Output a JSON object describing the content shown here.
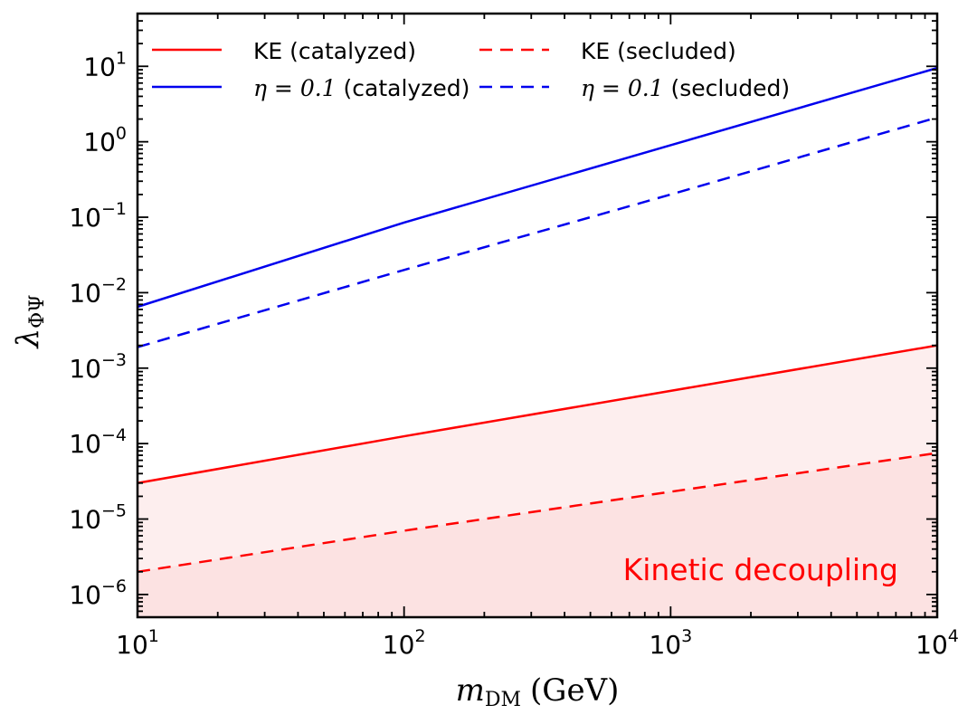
{
  "chart_data": {
    "type": "line",
    "xlabel": "m_DM (GeV)",
    "xlabel_main": "m",
    "xlabel_sub": "DM",
    "xlabel_unit": "(GeV)",
    "ylabel": "λ_ΦΨ",
    "ylabel_main": "λ",
    "ylabel_sub": "ΦΨ",
    "x_scale": "log",
    "y_scale": "log",
    "xlim": [
      10,
      10000
    ],
    "ylim": [
      5e-07,
      50
    ],
    "x_ticks": [
      {
        "value": 10,
        "base": "10",
        "exp": "1"
      },
      {
        "value": 100,
        "base": "10",
        "exp": "2"
      },
      {
        "value": 1000,
        "base": "10",
        "exp": "3"
      },
      {
        "value": 10000,
        "base": "10",
        "exp": "4"
      }
    ],
    "y_ticks": [
      {
        "value": 10,
        "base": "10",
        "exp": "1"
      },
      {
        "value": 1,
        "base": "10",
        "exp": "0"
      },
      {
        "value": 0.1,
        "base": "10",
        "exp": "−1"
      },
      {
        "value": 0.01,
        "base": "10",
        "exp": "−2"
      },
      {
        "value": 0.001,
        "base": "10",
        "exp": "−3"
      },
      {
        "value": 0.0001,
        "base": "10",
        "exp": "−4"
      },
      {
        "value": 1e-05,
        "base": "10",
        "exp": "−5"
      },
      {
        "value": 1e-06,
        "base": "10",
        "exp": "−6"
      }
    ],
    "grid": false,
    "legend_placement": "top-left",
    "series": [
      {
        "name": "KE (catalyzed)",
        "color": "#ff0000",
        "dash": "solid",
        "x": [
          10,
          100,
          1000,
          10000
        ],
        "y": [
          3e-05,
          0.000125,
          0.0005,
          0.002
        ]
      },
      {
        "name": "η = 0.1 (catalyzed)",
        "color": "#0000ee",
        "dash": "solid",
        "x": [
          10,
          100,
          1000,
          10000
        ],
        "y": [
          0.0065,
          0.085,
          0.9,
          9.5
        ]
      },
      {
        "name": "KE (secluded)",
        "color": "#ff0000",
        "dash": "dashed",
        "x": [
          10,
          100,
          1000,
          10000
        ],
        "y": [
          2e-06,
          7e-06,
          2.3e-05,
          7.5e-05
        ]
      },
      {
        "name": "η = 0.1 (secluded)",
        "color": "#0000ee",
        "dash": "dashed",
        "x": [
          10,
          100,
          1000,
          10000
        ],
        "y": [
          0.0019,
          0.02,
          0.2,
          2.1
        ]
      }
    ],
    "legend": [
      {
        "label": "KE (catalyzed)",
        "series": 0
      },
      {
        "label_pre": "η = 0.1",
        "label_post": "(catalyzed)",
        "series": 1
      },
      {
        "label": "KE (secluded)",
        "series": 2
      },
      {
        "label_pre": "η = 0.1",
        "label_post": "(secluded)",
        "series": 3
      }
    ],
    "shaded_regions": [
      {
        "below_series": 0,
        "color": "#fdeeee"
      },
      {
        "below_series": 2,
        "color": "#fce2e2"
      }
    ],
    "annotations": [
      {
        "text": "Kinetic decoupling",
        "color": "#ff0000",
        "x": 1400,
        "y": 1.6e-06
      }
    ]
  }
}
